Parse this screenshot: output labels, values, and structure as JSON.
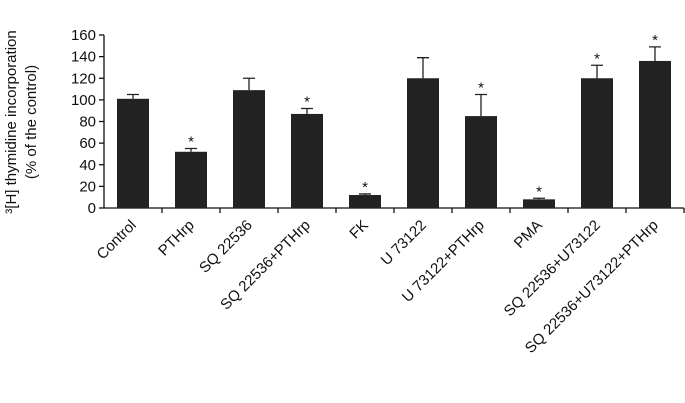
{
  "chart_data": {
    "type": "bar",
    "ylabel": [
      "³[H] thymidine incorporation",
      "(% of the control)"
    ],
    "categories": [
      "Control",
      "PTHrp",
      "SQ 22536",
      "SQ 22536+PTHrp",
      "FK",
      "U 73122",
      "U 73122+PTHrp",
      "PMA",
      "SQ 22536+U73122",
      "SQ 22536+U73122+PTHrp"
    ],
    "values": [
      101,
      52,
      109,
      87,
      12,
      120,
      85,
      8,
      120,
      136
    ],
    "errors": [
      4,
      3,
      11,
      5,
      1,
      19,
      20,
      1,
      12,
      13
    ],
    "significance": [
      null,
      "*",
      null,
      "*",
      "*",
      null,
      "*",
      "*",
      "*",
      "*"
    ],
    "color": "#222222",
    "ylim": [
      0,
      160
    ],
    "yticks": [
      0,
      20,
      40,
      60,
      80,
      100,
      120,
      140,
      160
    ],
    "grid": false
  }
}
